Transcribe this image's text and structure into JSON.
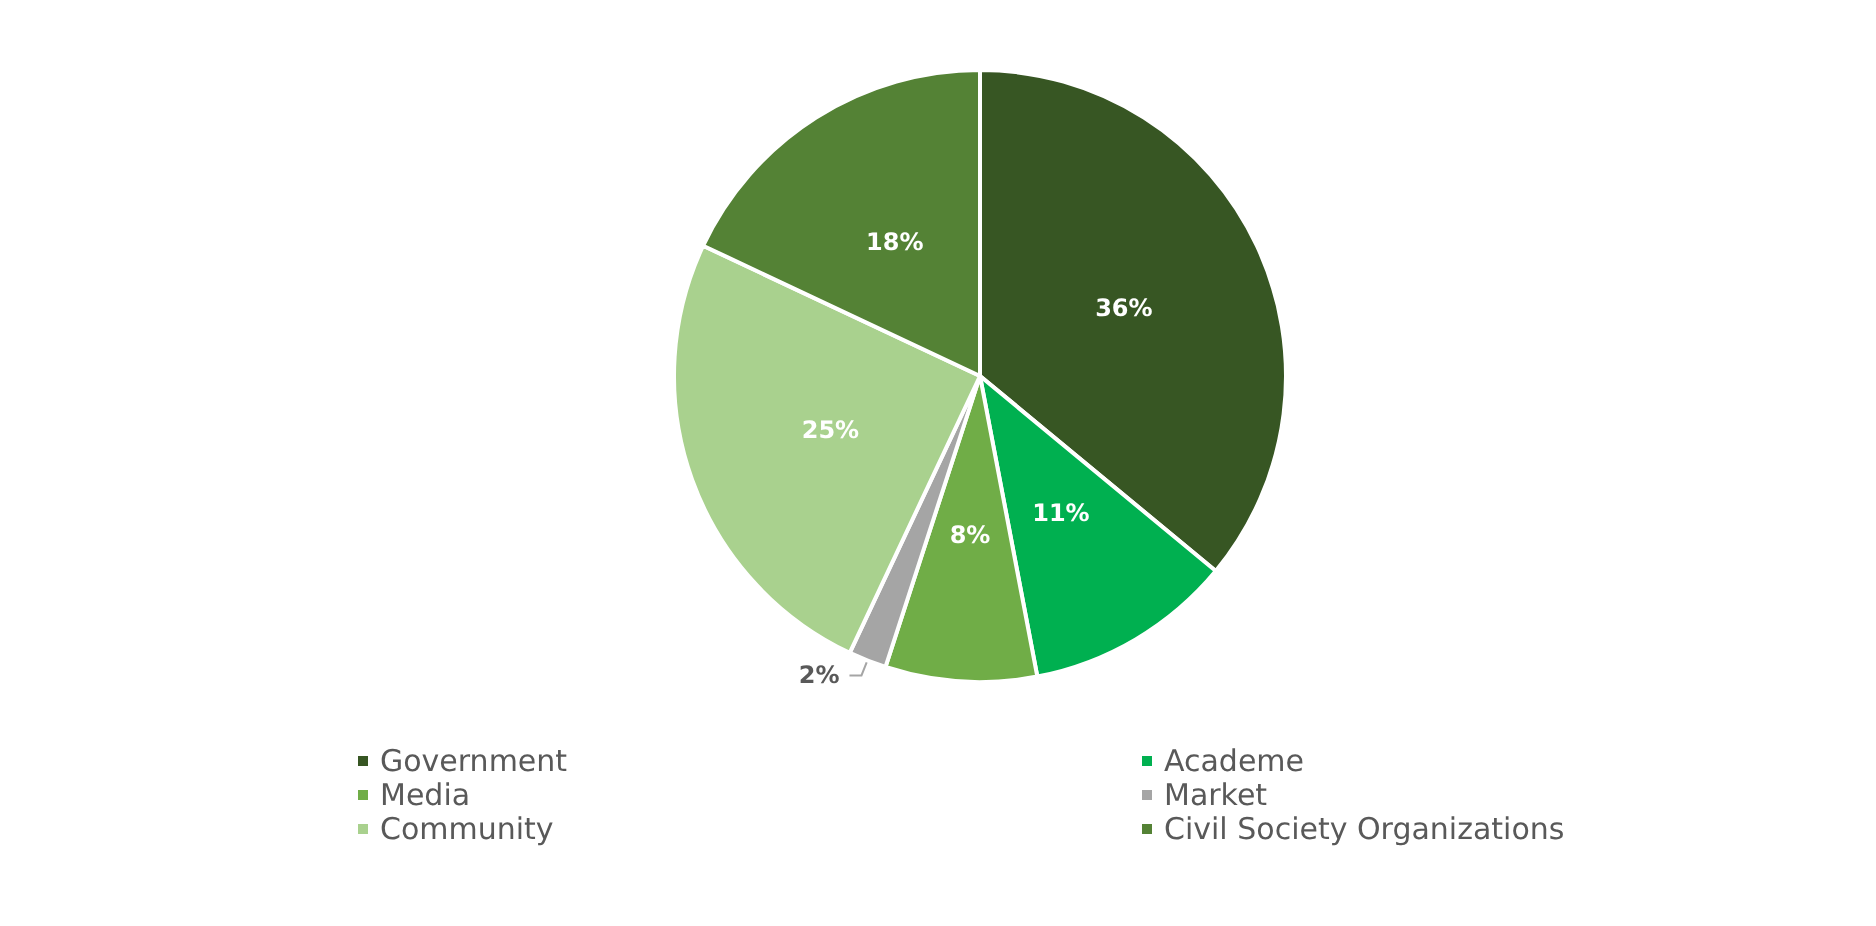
{
  "chart_data": {
    "type": "pie",
    "categories": [
      "Government",
      "Academe",
      "Media",
      "Market",
      "Community",
      "Civil Society Organizations"
    ],
    "values": [
      36,
      11,
      8,
      2,
      25,
      18
    ],
    "value_labels": [
      "36%",
      "11%",
      "8%",
      "2%",
      "25%",
      "18%"
    ],
    "colors": [
      "#375623",
      "#00b050",
      "#70ad47",
      "#a5a5a5",
      "#a9d18e",
      "#548235"
    ],
    "legend": "bottom"
  }
}
